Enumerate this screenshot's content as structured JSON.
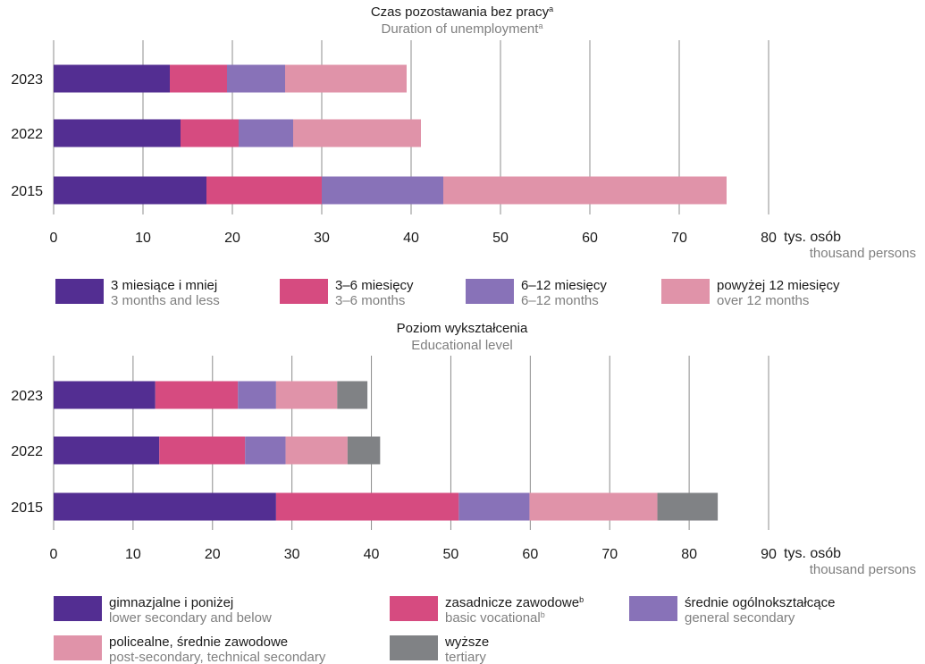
{
  "chart_data": [
    {
      "type": "bar",
      "orientation": "horizontal",
      "stacked": true,
      "title": "Czas pozostawania bez pracy",
      "title_sup": "a",
      "subtitle": "Duration of unemployment",
      "subtitle_sup": "a",
      "categories": [
        "2023",
        "2022",
        "2015"
      ],
      "series": [
        {
          "name": "3 miesiące i mniej",
          "name_en": "3 months and less",
          "color": "#532e92",
          "values": [
            13,
            14.2,
            17.1
          ]
        },
        {
          "name": "3–6 miesięcy",
          "name_en": "3–6 months",
          "color": "#d64b80",
          "values": [
            6.4,
            6.5,
            12.9
          ]
        },
        {
          "name": "6–12 miesięcy",
          "name_en": "6–12 months",
          "color": "#8872b8",
          "values": [
            6.5,
            6.1,
            13.6
          ]
        },
        {
          "name": "powyżej 12 miesięcy",
          "name_en": "over 12 months",
          "color": "#e093a9",
          "values": [
            13.6,
            14.3,
            31.7
          ]
        }
      ],
      "xlim": [
        0,
        80
      ],
      "xticks": [
        "0",
        "10",
        "20",
        "30",
        "40",
        "50",
        "60",
        "70",
        "80"
      ],
      "unit": "tys. osób",
      "unit_en": "thousand persons",
      "grid": "vertical",
      "legend": "below"
    },
    {
      "type": "bar",
      "orientation": "horizontal",
      "stacked": true,
      "title": "Poziom wykształcenia",
      "subtitle": "Educational level",
      "categories": [
        "2023",
        "2022",
        "2015"
      ],
      "series": [
        {
          "name": "gimnazjalne i poniżej",
          "name_en": "lower secondary and below",
          "color": "#532e92",
          "values": [
            12.8,
            13.3,
            28
          ]
        },
        {
          "name": "zasadnicze zawodowe",
          "name_sup": "b",
          "name_en": "basic vocational",
          "name_en_sup": "b",
          "color": "#d64b80",
          "values": [
            10.4,
            10.8,
            23
          ]
        },
        {
          "name": "średnie ogólnokształcące",
          "name_en": "general secondary",
          "color": "#8872b8",
          "values": [
            4.8,
            5.1,
            8.9
          ]
        },
        {
          "name": "policealne, średnie zawodowe",
          "name_en": "post-secondary, technical secondary",
          "color": "#e093a9",
          "values": [
            7.7,
            7.8,
            16.1
          ]
        },
        {
          "name": "wyższe",
          "name_en": "tertiary",
          "color": "#808285",
          "values": [
            3.8,
            4.1,
            7.6
          ]
        }
      ],
      "xlim": [
        0,
        90
      ],
      "xticks": [
        "0",
        "10",
        "20",
        "30",
        "40",
        "50",
        "60",
        "70",
        "80",
        "90"
      ],
      "unit": "tys. osób",
      "unit_en": "thousand persons",
      "grid": "vertical",
      "legend": "below"
    }
  ]
}
